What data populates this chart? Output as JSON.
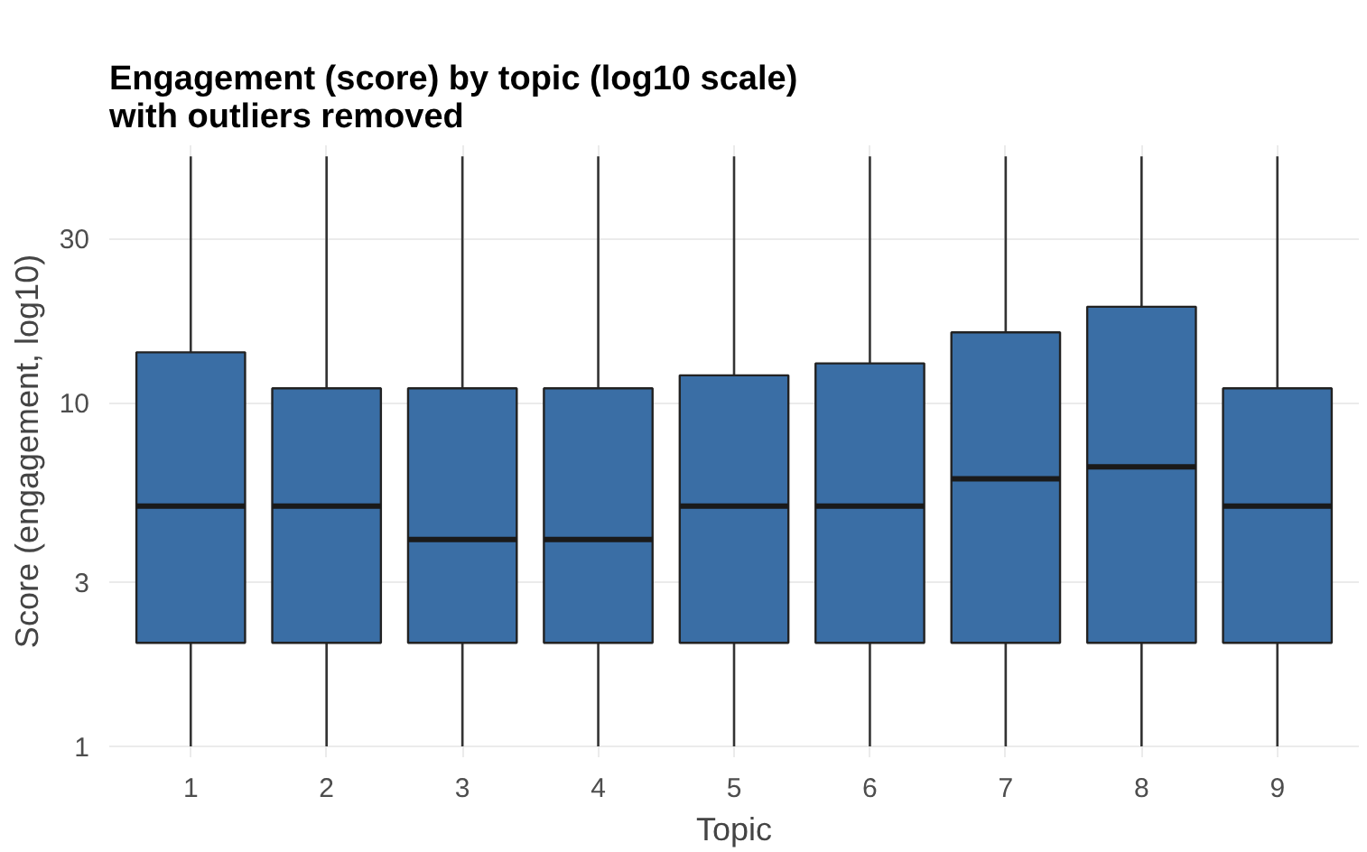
{
  "chart_data": {
    "type": "box",
    "title": "Engagement (score) by topic (log10 scale)\nwith outliers removed",
    "xlabel": "Topic",
    "ylabel": "Score (engagement, log10)",
    "categories": [
      "1",
      "2",
      "3",
      "4",
      "5",
      "6",
      "7",
      "8",
      "9"
    ],
    "color": "#3a6ea5",
    "boxes": [
      {
        "low": 1,
        "q1": 2,
        "median": 5,
        "q3": 14,
        "high": 52
      },
      {
        "low": 1,
        "q1": 2,
        "median": 5,
        "q3": 11,
        "high": 52
      },
      {
        "low": 1,
        "q1": 2,
        "median": 4,
        "q3": 11,
        "high": 52
      },
      {
        "low": 1,
        "q1": 2,
        "median": 4,
        "q3": 11,
        "high": 52
      },
      {
        "low": 1,
        "q1": 2,
        "median": 5,
        "q3": 12,
        "high": 52
      },
      {
        "low": 1,
        "q1": 2,
        "median": 5,
        "q3": 13,
        "high": 52
      },
      {
        "low": 1,
        "q1": 2,
        "median": 6,
        "q3": 16,
        "high": 52
      },
      {
        "low": 1,
        "q1": 2,
        "median": 6.5,
        "q3": 19,
        "high": 52
      },
      {
        "low": 1,
        "q1": 2,
        "median": 5,
        "q3": 11,
        "high": 52
      }
    ],
    "log": true,
    "ylim": [
      0.93,
      56
    ],
    "yticks": [
      1,
      3,
      10,
      30
    ],
    "grid": true
  }
}
